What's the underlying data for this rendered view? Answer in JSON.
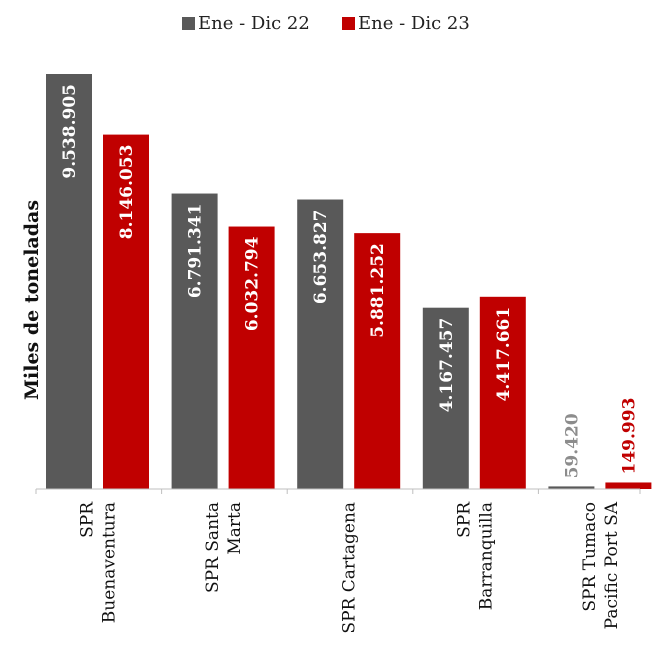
{
  "chart_data": {
    "type": "bar",
    "categories": [
      [
        "SPR",
        "Buenaventura"
      ],
      [
        "SPR Santa",
        "Marta"
      ],
      [
        "SPR Cartagena"
      ],
      [
        "SPR",
        "Barranquilla"
      ],
      [
        "SPR Tumaco",
        "Pacific Port SA"
      ]
    ],
    "series": [
      {
        "name": "Ene - Dic 22",
        "color": "#595959",
        "values": [
          9538905,
          6791341,
          6653827,
          4167457,
          59420
        ],
        "labels": [
          "9.538.905",
          "6.791.341",
          "6.653.827",
          "4.167.457",
          "59.420"
        ]
      },
      {
        "name": "Ene - Dic 23",
        "color": "#c00000",
        "values": [
          8146053,
          6032794,
          5881252,
          4417661,
          149993
        ],
        "labels": [
          "8.146.053",
          "6.032.794",
          "5.881.252",
          "4.417.661",
          "149.993"
        ]
      }
    ],
    "ylabel": "Miles de toneladas",
    "ylim": [
      0,
      9538905
    ],
    "grid": false,
    "legend": "top-center"
  }
}
